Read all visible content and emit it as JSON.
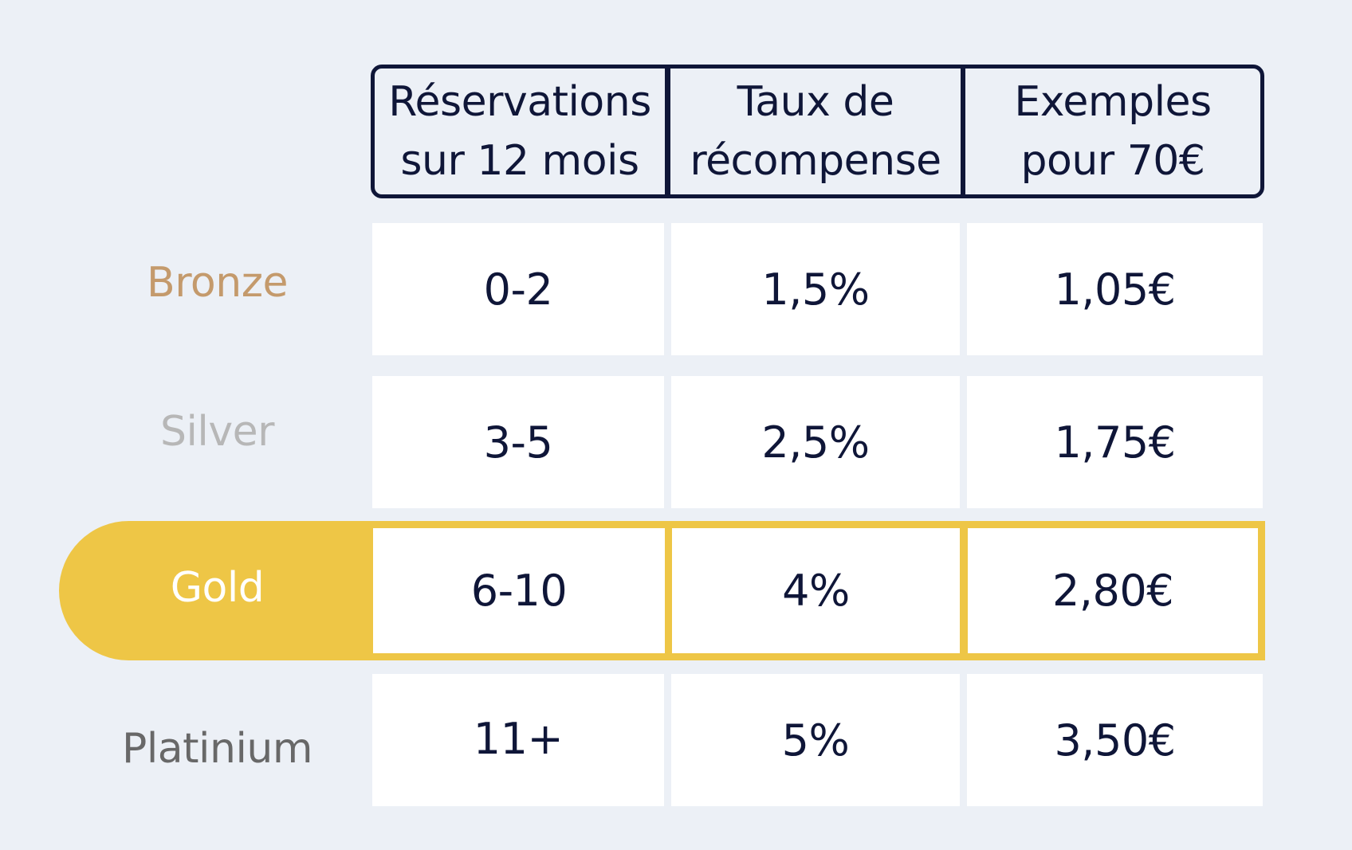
{
  "colors": {
    "background": "#ecf0f6",
    "text_dark": "#0f1638",
    "bronze": "#c49a6c",
    "silver": "#b7b7b7",
    "gold": "#eec646",
    "platinium": "#686868"
  },
  "header": {
    "col1": {
      "line1": "Réservations",
      "line2": "sur 12 mois"
    },
    "col2": {
      "line1": "Taux de",
      "line2": "récompense"
    },
    "col3": {
      "line1": "Exemples",
      "line2": "pour 70€"
    }
  },
  "rows": [
    {
      "tier": "Bronze",
      "reservations": "0-2",
      "rate": "1,5%",
      "example": "1,05€"
    },
    {
      "tier": "Silver",
      "reservations": "3-5",
      "rate": "2,5%",
      "example": "1,75€"
    },
    {
      "tier": "Gold",
      "reservations": "6-10",
      "rate": "4%",
      "example": "2,80€"
    },
    {
      "tier": "Platinium",
      "reservations": "11+",
      "rate": "5%",
      "example": "3,50€"
    }
  ],
  "highlighted_tier": "Gold"
}
